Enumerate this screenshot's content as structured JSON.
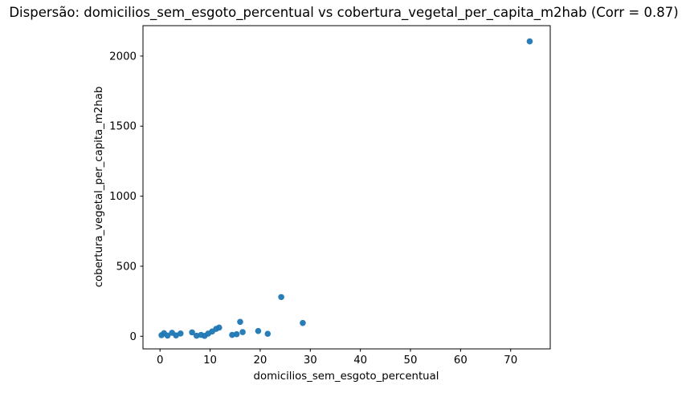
{
  "figure": {
    "background": "#ffffff",
    "spine_color": "#000000"
  },
  "chart_data": {
    "type": "scatter",
    "title": "Dispersão: domicilios_sem_esgoto_percentual vs cobertura_vegetal_per_capita_m2hab (Corr = 0.87)",
    "xlabel": "domicilios_sem_esgoto_percentual",
    "ylabel": "cobertura_vegetal_per_capita_m2hab",
    "correlation": 0.87,
    "marker_color": "#1f77b4",
    "marker_radius": 3.8,
    "grid": false,
    "legend_position": "none",
    "xlim": [
      -3.4,
      77.9
    ],
    "ylim": [
      -90,
      2217
    ],
    "xticks": [
      0,
      10,
      20,
      30,
      40,
      50,
      60,
      70
    ],
    "yticks": [
      0,
      500,
      1000,
      1500,
      2000
    ],
    "points": [
      [
        0.3,
        8
      ],
      [
        0.8,
        22
      ],
      [
        1.5,
        5
      ],
      [
        2.4,
        25
      ],
      [
        3.2,
        6
      ],
      [
        4.1,
        20
      ],
      [
        6.4,
        28
      ],
      [
        7.3,
        4
      ],
      [
        8.2,
        10
      ],
      [
        8.9,
        3
      ],
      [
        9.6,
        19
      ],
      [
        10.4,
        34
      ],
      [
        11.2,
        53
      ],
      [
        11.8,
        62
      ],
      [
        14.4,
        10
      ],
      [
        15.3,
        15
      ],
      [
        16.0,
        103
      ],
      [
        16.5,
        30
      ],
      [
        19.6,
        38
      ],
      [
        21.5,
        18
      ],
      [
        24.2,
        280
      ],
      [
        28.5,
        95
      ],
      [
        73.8,
        2105
      ]
    ]
  }
}
